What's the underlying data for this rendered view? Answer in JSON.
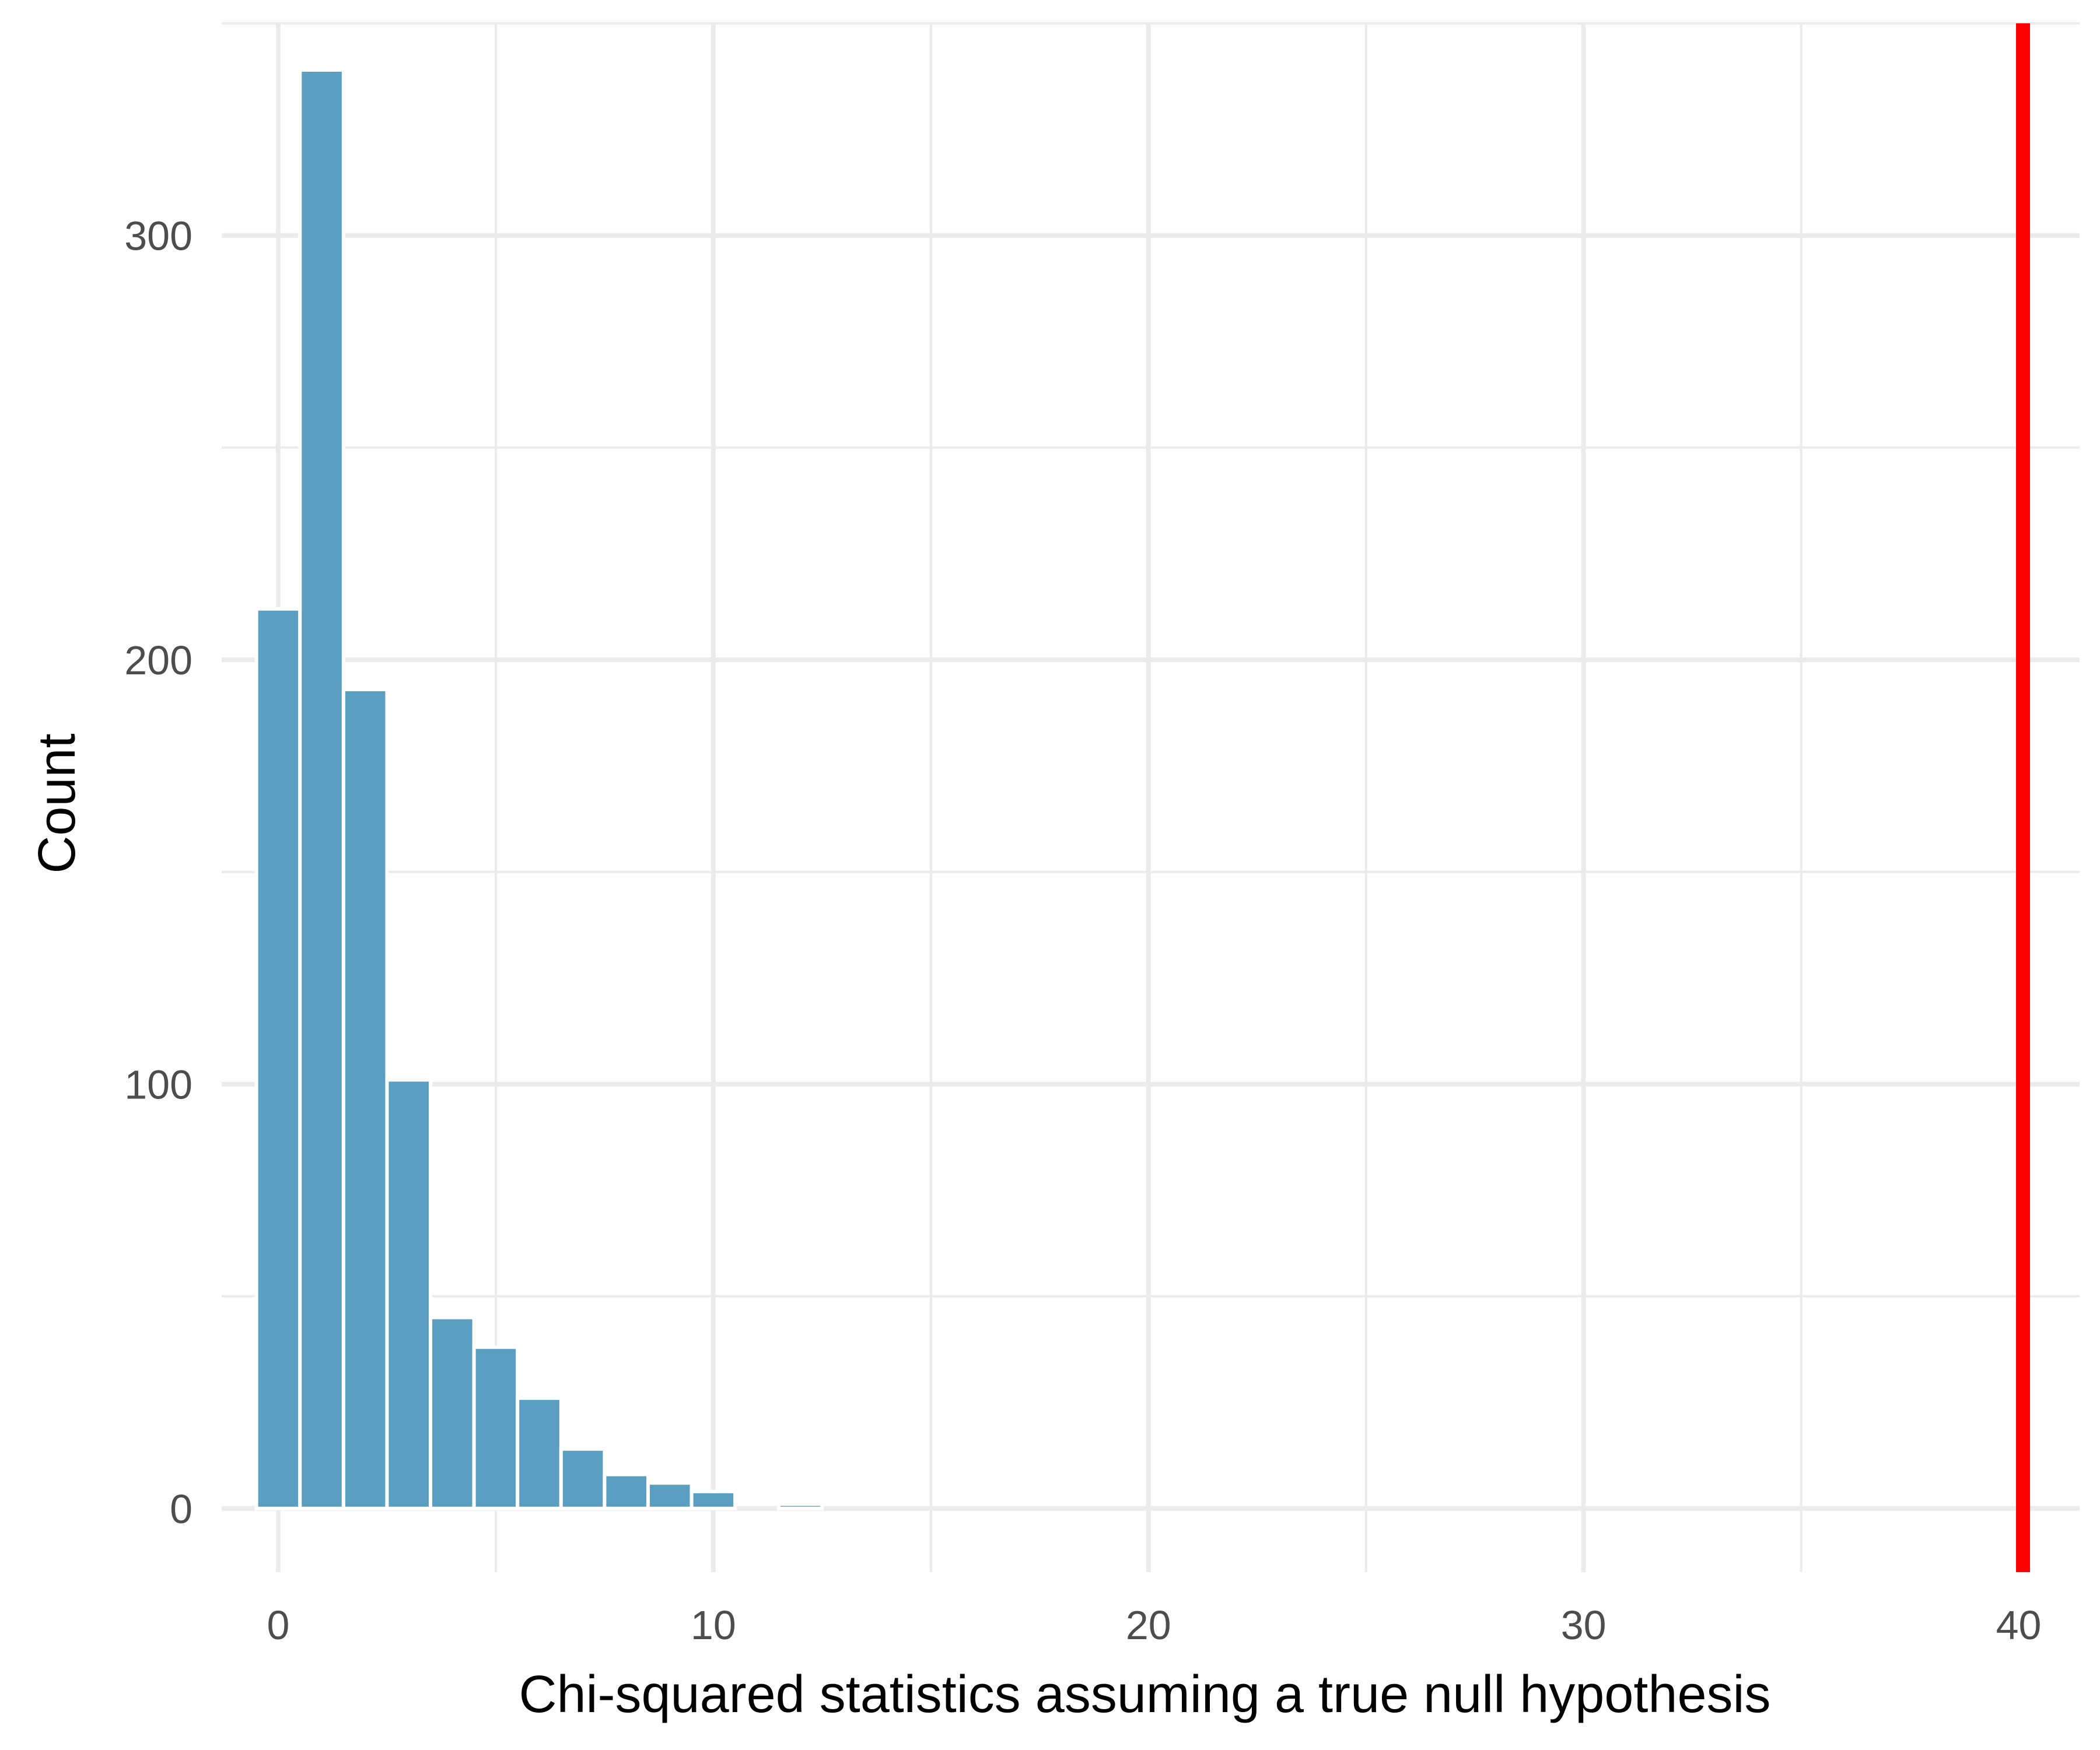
{
  "chart_data": {
    "type": "bar",
    "title": "",
    "xlabel": "Chi-squared statistics assuming a true null hypothesis",
    "ylabel": "Count",
    "xlim": [
      -1.3,
      41.4
    ],
    "ylim": [
      -15,
      350
    ],
    "x_major_ticks": [
      0,
      10,
      20,
      30,
      40
    ],
    "x_minor_ticks": [
      5,
      15,
      25,
      35
    ],
    "y_major_ticks": [
      0,
      100,
      200,
      300
    ],
    "y_minor_ticks": [
      50,
      150,
      250,
      350
    ],
    "x_tick_labels": [
      "0",
      "10",
      "20",
      "30",
      "40"
    ],
    "y_tick_labels": [
      "0",
      "100",
      "200",
      "300"
    ],
    "grid": true,
    "legend": "none",
    "bin_width": 1,
    "bins": [
      {
        "x": 0,
        "count": 212
      },
      {
        "x": 1,
        "count": 339
      },
      {
        "x": 2,
        "count": 193
      },
      {
        "x": 3,
        "count": 101
      },
      {
        "x": 4,
        "count": 45
      },
      {
        "x": 5,
        "count": 38
      },
      {
        "x": 6,
        "count": 26
      },
      {
        "x": 7,
        "count": 14
      },
      {
        "x": 8,
        "count": 8
      },
      {
        "x": 9,
        "count": 6
      },
      {
        "x": 10,
        "count": 4
      },
      {
        "x": 11,
        "count": 0
      },
      {
        "x": 12,
        "count": 1
      }
    ],
    "observed_line": {
      "x": 40.1
    },
    "colors": {
      "bar_fill": "#5a9ec2",
      "observed_line": "#ff0000",
      "grid": "#ebebeb"
    }
  }
}
